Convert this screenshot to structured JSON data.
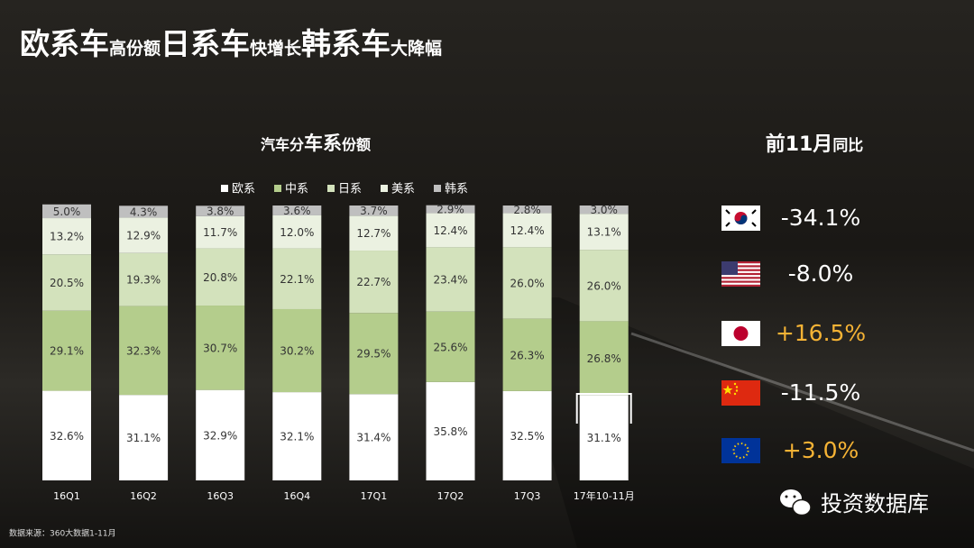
{
  "title_parts": [
    {
      "text": "欧系车",
      "size": "large"
    },
    {
      "text": "高份额",
      "size": "small"
    },
    {
      "text": "日系车",
      "size": "large"
    },
    {
      "text": "快增长",
      "size": "small"
    },
    {
      "text": "韩系车",
      "size": "large"
    },
    {
      "text": "大降幅",
      "size": "small"
    }
  ],
  "chart_data": {
    "type": "stacked_bar",
    "title_parts": [
      {
        "text": "汽车分",
        "size": "small"
      },
      {
        "text": "车系",
        "size": "large"
      },
      {
        "text": "份额",
        "size": "small"
      }
    ],
    "categories": [
      "16Q1",
      "16Q2",
      "16Q3",
      "16Q4",
      "17Q1",
      "17Q2",
      "17Q3",
      "17年10-11月"
    ],
    "series": [
      {
        "name": "欧系",
        "color": "#ffffff",
        "values": [
          32.6,
          31.1,
          32.9,
          32.1,
          31.4,
          35.8,
          32.5,
          31.1
        ],
        "value_labels": [
          "32.6%",
          "31.1%",
          "32.9%",
          "32.1%",
          "31.4%",
          "35.8%",
          "32.5%",
          "31.1%"
        ]
      },
      {
        "name": "中系",
        "color": "#b4cd8c",
        "values": [
          29.1,
          32.3,
          30.7,
          30.2,
          29.5,
          25.6,
          26.3,
          26.8
        ],
        "value_labels": [
          "29.1%",
          "32.3%",
          "30.7%",
          "30.2%",
          "29.5%",
          "25.6%",
          "26.3%",
          "26.8%"
        ]
      },
      {
        "name": "日系",
        "color": "#d3e2bc",
        "values": [
          20.5,
          19.3,
          20.8,
          22.1,
          22.7,
          23.4,
          26.0,
          26.0
        ],
        "value_labels": [
          "20.5%",
          "19.3%",
          "20.8%",
          "22.1%",
          "22.7%",
          "23.4%",
          "26.0%",
          "26.0%"
        ]
      },
      {
        "name": "美系",
        "color": "#ebf1e1",
        "values": [
          13.2,
          12.9,
          11.7,
          12.0,
          12.7,
          12.4,
          12.4,
          13.1
        ],
        "value_labels": [
          "13.2%",
          "12.9%",
          "11.7%",
          "12.0%",
          "12.7%",
          "12.4%",
          "12.4%",
          "13.1%"
        ]
      },
      {
        "name": "韩系",
        "color": "#bfbfbf",
        "values": [
          5.0,
          4.3,
          3.8,
          3.6,
          3.7,
          2.9,
          2.8,
          3.0
        ],
        "value_labels": [
          "5.0%",
          "4.3%",
          "3.8%",
          "3.6%",
          "3.7%",
          "2.9%",
          "2.8%",
          "3.0%"
        ]
      }
    ],
    "ylim": [
      0,
      100
    ]
  },
  "panel": {
    "title_parts": [
      {
        "text": "前11月",
        "size": "large"
      },
      {
        "text": "同比",
        "size": "small"
      }
    ],
    "items": [
      {
        "text": "-34.1%",
        "color": "#ffffff"
      },
      {
        "text": "-8.0%",
        "color": "#ffffff"
      },
      {
        "text": "+16.5%",
        "color": "#f5b335"
      },
      {
        "text": "-11.5%",
        "color": "#ffffff"
      },
      {
        "text": "+3.0%",
        "color": "#f5b335"
      }
    ]
  },
  "source": "数据来源：360大数据1-11月",
  "watermark": "投资数据库"
}
